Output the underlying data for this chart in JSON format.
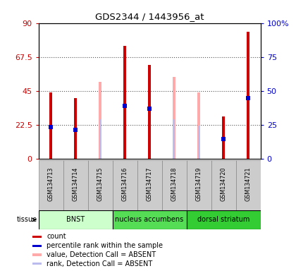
{
  "title": "GDS2344 / 1443956_at",
  "samples": [
    "GSM134713",
    "GSM134714",
    "GSM134715",
    "GSM134716",
    "GSM134717",
    "GSM134718",
    "GSM134719",
    "GSM134720",
    "GSM134721"
  ],
  "count_values": [
    44,
    40,
    null,
    75,
    62,
    null,
    null,
    28,
    84
  ],
  "rank_values": [
    21,
    19,
    null,
    35,
    33,
    null,
    null,
    13,
    40
  ],
  "absent_value": [
    null,
    null,
    51,
    null,
    null,
    54,
    44,
    null,
    null
  ],
  "absent_rank": [
    null,
    null,
    26,
    null,
    null,
    26,
    22,
    null,
    null
  ],
  "ylim_left": [
    0,
    90
  ],
  "ylim_right": [
    0,
    100
  ],
  "yticks_left": [
    0,
    22.5,
    45,
    67.5,
    90
  ],
  "yticks_right": [
    0,
    25,
    50,
    75,
    100
  ],
  "count_color": "#cc0000",
  "rank_color": "#0000cc",
  "absent_value_color": "#ffaaaa",
  "absent_rank_color": "#bbbbee",
  "grid_color": "#555555",
  "bg_tissue_bnst": "#ccffcc",
  "bg_tissue_nacc": "#44ee44",
  "bg_tissue_dstr": "#22dd22",
  "tissue_labels": [
    "BNST",
    "nucleus accumbens",
    "dorsal striatum"
  ],
  "tissue_ranges": [
    [
      0,
      3
    ],
    [
      3,
      6
    ],
    [
      6,
      9
    ]
  ],
  "tissue_colors": [
    "#ccffcc",
    "#55dd55",
    "#33cc33"
  ],
  "legend_colors": [
    "#cc0000",
    "#0000cc",
    "#ffaaaa",
    "#bbbbee"
  ],
  "legend_labels": [
    "count",
    "percentile rank within the sample",
    "value, Detection Call = ABSENT",
    "rank, Detection Call = ABSENT"
  ]
}
